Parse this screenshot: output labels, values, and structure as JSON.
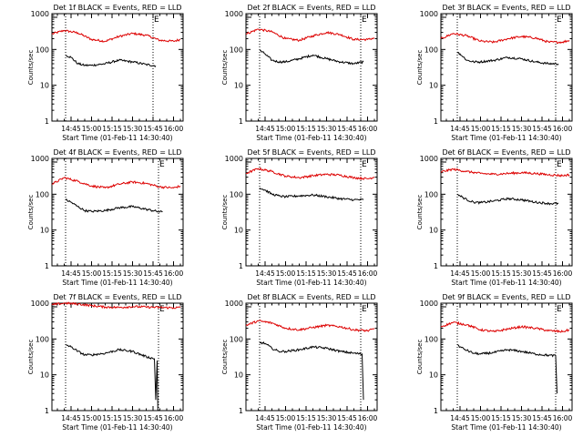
{
  "chart_data": [
    {
      "type": "line",
      "title": "Det 1f BLACK = Events, RED = LLD",
      "xlabel": "Start Time (01-Feb-11 14:30:40)",
      "ylabel": "Counts/sec",
      "yscale": "log",
      "ylim": [
        1,
        1000
      ],
      "xlim": [
        "14:31",
        "16:07"
      ],
      "x_tick_labels": [
        "14:45",
        "15:00",
        "15:15",
        "15:30",
        "15:45",
        "16:00"
      ],
      "y_tick_labels": [
        "1",
        "10",
        "100",
        "1000"
      ],
      "vlines": [
        "14:41",
        "15:45"
      ],
      "annotation": "E",
      "series": [
        {
          "name": "LLD",
          "color": "#dd0000",
          "x": [
            "14:31",
            "14:40",
            "14:50",
            "15:00",
            "15:10",
            "15:20",
            "15:30",
            "15:40",
            "15:50",
            "16:00",
            "16:05"
          ],
          "values": [
            270,
            340,
            290,
            190,
            170,
            230,
            280,
            250,
            180,
            170,
            190
          ]
        },
        {
          "name": "Events",
          "color": "#000000",
          "x": [
            "14:41",
            "14:45",
            "14:50",
            "14:55",
            "15:00",
            "15:10",
            "15:20",
            "15:30",
            "15:40",
            "15:47"
          ],
          "values": [
            70,
            60,
            40,
            36,
            36,
            40,
            50,
            45,
            38,
            35
          ]
        }
      ]
    },
    {
      "type": "line",
      "title": "Det 2f BLACK = Events, RED = LLD",
      "xlabel": "Start Time (01-Feb-11 14:30:40)",
      "ylabel": "Counts/sec",
      "yscale": "log",
      "ylim": [
        1,
        1000
      ],
      "xlim": [
        "14:31",
        "16:07"
      ],
      "x_tick_labels": [
        "14:45",
        "15:00",
        "15:15",
        "15:30",
        "15:45",
        "16:00"
      ],
      "y_tick_labels": [
        "1",
        "10",
        "100",
        "1000"
      ],
      "vlines": [
        "14:41",
        "15:55"
      ],
      "annotation": "E",
      "series": [
        {
          "name": "LLD",
          "color": "#dd0000",
          "x": [
            "14:31",
            "14:40",
            "14:50",
            "15:00",
            "15:10",
            "15:20",
            "15:30",
            "15:40",
            "15:50",
            "16:00",
            "16:05"
          ],
          "values": [
            270,
            370,
            310,
            200,
            180,
            240,
            300,
            260,
            190,
            190,
            210
          ]
        },
        {
          "name": "Events",
          "color": "#000000",
          "x": [
            "14:41",
            "14:45",
            "14:50",
            "14:55",
            "15:00",
            "15:10",
            "15:20",
            "15:30",
            "15:40",
            "15:50",
            "15:57"
          ],
          "values": [
            95,
            75,
            50,
            45,
            45,
            55,
            70,
            55,
            45,
            40,
            45
          ]
        }
      ]
    },
    {
      "type": "line",
      "title": "Det 3f BLACK = Events, RED = LLD",
      "xlabel": "Start Time (01-Feb-11 14:30:40)",
      "ylabel": "Counts/sec",
      "yscale": "log",
      "ylim": [
        1,
        1000
      ],
      "xlim": [
        "14:31",
        "16:07"
      ],
      "x_tick_labels": [
        "14:45",
        "15:00",
        "15:15",
        "15:30",
        "15:45",
        "16:00"
      ],
      "y_tick_labels": [
        "1",
        "10",
        "100",
        "1000"
      ],
      "vlines": [
        "14:43",
        "15:55"
      ],
      "annotation": "E",
      "series": [
        {
          "name": "LLD",
          "color": "#dd0000",
          "x": [
            "14:31",
            "14:40",
            "14:50",
            "15:00",
            "15:10",
            "15:20",
            "15:30",
            "15:40",
            "15:50",
            "16:00",
            "16:05"
          ],
          "values": [
            200,
            280,
            240,
            170,
            160,
            200,
            230,
            210,
            160,
            160,
            180
          ]
        },
        {
          "name": "Events",
          "color": "#000000",
          "x": [
            "14:43",
            "14:45",
            "14:50",
            "14:55",
            "15:00",
            "15:10",
            "15:20",
            "15:30",
            "15:40",
            "15:50",
            "15:57"
          ],
          "values": [
            85,
            75,
            50,
            45,
            45,
            50,
            60,
            55,
            45,
            40,
            40
          ]
        }
      ]
    },
    {
      "type": "line",
      "title": "Det 4f BLACK = Events, RED = LLD",
      "xlabel": "Start Time (01-Feb-11 14:30:40)",
      "ylabel": "Counts/sec",
      "yscale": "log",
      "ylim": [
        1,
        1000
      ],
      "xlim": [
        "14:31",
        "16:07"
      ],
      "x_tick_labels": [
        "14:45",
        "15:00",
        "15:15",
        "15:30",
        "15:45",
        "16:00"
      ],
      "y_tick_labels": [
        "1",
        "10",
        "100",
        "1000"
      ],
      "vlines": [
        "14:41",
        "15:49"
      ],
      "annotation": "E",
      "series": [
        {
          "name": "LLD",
          "color": "#dd0000",
          "x": [
            "14:31",
            "14:40",
            "14:50",
            "15:00",
            "15:10",
            "15:20",
            "15:30",
            "15:40",
            "15:50",
            "16:00",
            "16:05"
          ],
          "values": [
            190,
            290,
            230,
            170,
            150,
            190,
            220,
            200,
            160,
            150,
            170
          ]
        },
        {
          "name": "Events",
          "color": "#000000",
          "x": [
            "14:41",
            "14:45",
            "14:50",
            "14:55",
            "15:00",
            "15:10",
            "15:20",
            "15:30",
            "15:40",
            "15:50",
            "15:52"
          ],
          "values": [
            70,
            60,
            45,
            35,
            33,
            35,
            42,
            45,
            38,
            32,
            33
          ]
        }
      ]
    },
    {
      "type": "line",
      "title": "Det 5f BLACK = Events, RED = LLD",
      "xlabel": "Start Time (01-Feb-11 14:30:40)",
      "ylabel": "Counts/sec",
      "yscale": "log",
      "ylim": [
        1,
        1000
      ],
      "xlim": [
        "14:31",
        "16:07"
      ],
      "x_tick_labels": [
        "14:45",
        "15:00",
        "15:15",
        "15:30",
        "15:45",
        "16:00"
      ],
      "y_tick_labels": [
        "1",
        "10",
        "100",
        "1000"
      ],
      "vlines": [
        "14:41",
        "15:55"
      ],
      "annotation": "E",
      "series": [
        {
          "name": "LLD",
          "color": "#dd0000",
          "x": [
            "14:31",
            "14:40",
            "14:50",
            "15:00",
            "15:10",
            "15:20",
            "15:30",
            "15:40",
            "15:50",
            "16:00",
            "16:05"
          ],
          "values": [
            380,
            520,
            430,
            320,
            290,
            330,
            360,
            340,
            290,
            270,
            300
          ]
        },
        {
          "name": "Events",
          "color": "#000000",
          "x": [
            "14:41",
            "14:45",
            "14:50",
            "14:55",
            "15:00",
            "15:10",
            "15:20",
            "15:30",
            "15:40",
            "15:50",
            "15:57"
          ],
          "values": [
            150,
            130,
            100,
            90,
            85,
            90,
            95,
            85,
            75,
            70,
            70
          ]
        }
      ]
    },
    {
      "type": "line",
      "title": "Det 6f BLACK = Events, RED = LLD",
      "xlabel": "Start Time (01-Feb-11 14:30:40)",
      "ylabel": "Counts/sec",
      "yscale": "log",
      "ylim": [
        1,
        1000
      ],
      "xlim": [
        "14:31",
        "16:07"
      ],
      "x_tick_labels": [
        "14:45",
        "15:00",
        "15:15",
        "15:30",
        "15:45",
        "16:00"
      ],
      "y_tick_labels": [
        "1",
        "10",
        "100",
        "1000"
      ],
      "vlines": [
        "14:43",
        "15:55"
      ],
      "annotation": "E",
      "series": [
        {
          "name": "LLD",
          "color": "#dd0000",
          "x": [
            "14:31",
            "14:40",
            "14:50",
            "15:00",
            "15:10",
            "15:20",
            "15:30",
            "15:40",
            "15:50",
            "16:00",
            "16:05"
          ],
          "values": [
            420,
            500,
            430,
            380,
            360,
            380,
            400,
            380,
            350,
            330,
            350
          ]
        },
        {
          "name": "Events",
          "color": "#000000",
          "x": [
            "14:43",
            "14:45",
            "14:50",
            "14:55",
            "15:00",
            "15:10",
            "15:20",
            "15:30",
            "15:40",
            "15:50",
            "15:57"
          ],
          "values": [
            100,
            90,
            70,
            60,
            58,
            65,
            75,
            70,
            60,
            55,
            55
          ]
        }
      ]
    },
    {
      "type": "line",
      "title": "Det 7f BLACK = Events, RED = LLD",
      "xlabel": "Start Time (01-Feb-11 14:30:40)",
      "ylabel": "Counts/sec",
      "yscale": "log",
      "ylim": [
        1,
        1000
      ],
      "xlim": [
        "14:31",
        "16:07"
      ],
      "x_tick_labels": [
        "14:45",
        "15:00",
        "15:15",
        "15:30",
        "15:45",
        "16:00"
      ],
      "y_tick_labels": [
        "1",
        "10",
        "100",
        "1000"
      ],
      "vlines": [
        "14:41",
        "15:49"
      ],
      "annotation": "E",
      "series": [
        {
          "name": "LLD",
          "color": "#dd0000",
          "x": [
            "14:31",
            "14:40",
            "14:50",
            "15:00",
            "15:10",
            "15:20",
            "15:30",
            "15:40",
            "15:50",
            "16:00",
            "16:05"
          ],
          "values": [
            900,
            1000,
            950,
            850,
            780,
            760,
            800,
            780,
            760,
            740,
            760
          ]
        },
        {
          "name": "Events",
          "color": "#000000",
          "x": [
            "14:41",
            "14:45",
            "14:50",
            "14:55",
            "15:00",
            "15:10",
            "15:20",
            "15:30",
            "15:40",
            "15:46",
            "15:47",
            "15:48",
            "15:48.5"
          ],
          "values": [
            70,
            60,
            45,
            36,
            36,
            40,
            50,
            45,
            32,
            28,
            2,
            25,
            1
          ]
        }
      ]
    },
    {
      "type": "line",
      "title": "Det 8f BLACK = Events, RED = LLD",
      "xlabel": "Start Time (01-Feb-11 14:30:40)",
      "ylabel": "Counts/sec",
      "yscale": "log",
      "ylim": [
        1,
        1000
      ],
      "xlim": [
        "14:31",
        "16:07"
      ],
      "x_tick_labels": [
        "14:45",
        "15:00",
        "15:15",
        "15:30",
        "15:45",
        "16:00"
      ],
      "y_tick_labels": [
        "1",
        "10",
        "100",
        "1000"
      ],
      "vlines": [
        "14:41",
        "15:55"
      ],
      "annotation": "E",
      "series": [
        {
          "name": "LLD",
          "color": "#dd0000",
          "x": [
            "14:31",
            "14:40",
            "14:50",
            "15:00",
            "15:10",
            "15:20",
            "15:30",
            "15:40",
            "15:50",
            "16:00",
            "16:05"
          ],
          "values": [
            240,
            320,
            280,
            200,
            180,
            210,
            240,
            220,
            180,
            170,
            190
          ]
        },
        {
          "name": "Events",
          "color": "#000000",
          "x": [
            "14:41",
            "14:45",
            "14:50",
            "14:55",
            "15:00",
            "15:10",
            "15:20",
            "15:30",
            "15:40",
            "15:50",
            "15:56",
            "15:57"
          ],
          "values": [
            80,
            75,
            55,
            45,
            45,
            50,
            60,
            55,
            45,
            40,
            38,
            2
          ]
        }
      ]
    },
    {
      "type": "line",
      "title": "Det 9f BLACK = Events, RED = LLD",
      "xlabel": "Start Time (01-Feb-11 14:30:40)",
      "ylabel": "Counts/sec",
      "yscale": "log",
      "ylim": [
        1,
        1000
      ],
      "xlim": [
        "14:31",
        "16:07"
      ],
      "x_tick_labels": [
        "14:45",
        "15:00",
        "15:15",
        "15:30",
        "15:45",
        "16:00"
      ],
      "y_tick_labels": [
        "1",
        "10",
        "100",
        "1000"
      ],
      "vlines": [
        "14:43",
        "15:55"
      ],
      "annotation": "E",
      "series": [
        {
          "name": "LLD",
          "color": "#dd0000",
          "x": [
            "14:31",
            "14:40",
            "14:50",
            "15:00",
            "15:10",
            "15:20",
            "15:30",
            "15:40",
            "15:50",
            "16:00",
            "16:05"
          ],
          "values": [
            220,
            290,
            250,
            180,
            160,
            190,
            220,
            200,
            170,
            160,
            180
          ]
        },
        {
          "name": "Events",
          "color": "#000000",
          "x": [
            "14:43",
            "14:45",
            "14:50",
            "14:55",
            "15:00",
            "15:10",
            "15:20",
            "15:30",
            "15:40",
            "15:50",
            "15:55",
            "15:56"
          ],
          "values": [
            70,
            60,
            48,
            40,
            38,
            42,
            50,
            45,
            38,
            35,
            34,
            3
          ]
        }
      ]
    }
  ]
}
